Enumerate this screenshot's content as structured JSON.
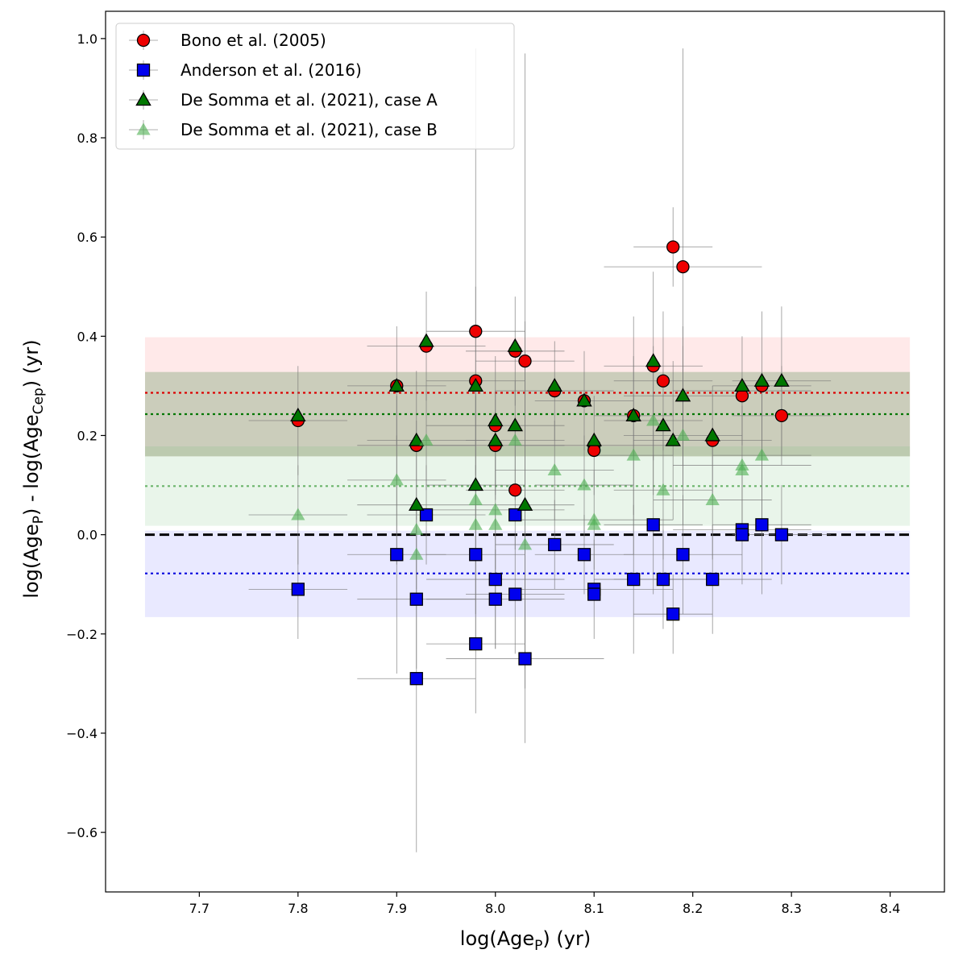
{
  "chart_data": {
    "type": "scatter",
    "title": "",
    "xlabel_main": "log(Age",
    "xlabel_sub": "P",
    "xlabel_tail": ") (yr)",
    "ylabel_parts": [
      "log(Age",
      "P",
      ") - log(Age",
      "Cep",
      ") (yr)"
    ],
    "xlim": [
      7.605,
      8.455
    ],
    "ylim": [
      -0.72,
      1.055
    ],
    "xticks": [
      7.7,
      7.8,
      7.9,
      8.0,
      8.1,
      8.2,
      8.3,
      8.4
    ],
    "xtick_labels": [
      "7.7",
      "7.8",
      "7.9",
      "8.0",
      "8.1",
      "8.2",
      "8.3",
      "8.4"
    ],
    "yticks": [
      -0.6,
      -0.4,
      -0.2,
      0.0,
      0.2,
      0.4,
      0.6,
      0.8,
      1.0
    ],
    "ytick_labels": [
      "−0.6",
      "−0.4",
      "−0.2",
      "0.0",
      "0.2",
      "0.4",
      "0.6",
      "0.8",
      "1.0"
    ],
    "legend_position": "top-left",
    "bands": [
      {
        "name": "bono-band",
        "y0": 0.158,
        "y1": 0.398,
        "x0": 7.645,
        "x1": 8.42,
        "color": "#ff9999",
        "opacity": 0.22
      },
      {
        "name": "somma-a-band",
        "y0": 0.158,
        "y1": 0.328,
        "x0": 7.645,
        "x1": 8.42,
        "color": "#2e7d32",
        "opacity": 0.25
      },
      {
        "name": "somma-b-band",
        "y0": 0.018,
        "y1": 0.178,
        "x0": 7.645,
        "x1": 8.42,
        "color": "#66bb6a",
        "opacity": 0.14
      },
      {
        "name": "anderson-band",
        "y0": -0.166,
        "y1": 0.008,
        "x0": 7.645,
        "x1": 8.42,
        "color": "#9999ff",
        "opacity": 0.22
      }
    ],
    "mean_lines": [
      {
        "name": "bono-mean",
        "y": 0.286,
        "color": "#dd0000",
        "dash": "3,4",
        "opacity": 1
      },
      {
        "name": "somma-a-mean",
        "y": 0.243,
        "color": "#007700",
        "dash": "3,4",
        "opacity": 1
      },
      {
        "name": "somma-b-mean",
        "y": 0.098,
        "color": "#339933",
        "dash": "3,4",
        "opacity": 0.7
      },
      {
        "name": "anderson-mean",
        "y": -0.078,
        "color": "#0000dd",
        "dash": "3,4",
        "opacity": 1
      },
      {
        "name": "zero-line",
        "y": 0.0,
        "color": "#000000",
        "dash": "12,6",
        "opacity": 1,
        "width": 3
      }
    ],
    "series": [
      {
        "name": "Bono et al. (2005)",
        "marker": "circle",
        "color": "#ee0000",
        "edge": "#000000",
        "opacity": 1,
        "points": [
          [
            7.8,
            0.23
          ],
          [
            7.9,
            0.3
          ],
          [
            7.92,
            0.18
          ],
          [
            7.93,
            0.38
          ],
          [
            7.98,
            0.41
          ],
          [
            7.98,
            0.31
          ],
          [
            8.0,
            0.22
          ],
          [
            8.0,
            0.18
          ],
          [
            8.02,
            0.37
          ],
          [
            8.02,
            0.09
          ],
          [
            8.03,
            0.35
          ],
          [
            8.06,
            0.29
          ],
          [
            8.09,
            0.27
          ],
          [
            8.1,
            0.18
          ],
          [
            8.1,
            0.17
          ],
          [
            8.14,
            0.24
          ],
          [
            8.16,
            0.34
          ],
          [
            8.17,
            0.31
          ],
          [
            8.18,
            0.58
          ],
          [
            8.19,
            0.54
          ],
          [
            8.22,
            0.19
          ],
          [
            8.25,
            0.28
          ],
          [
            8.27,
            0.3
          ],
          [
            8.29,
            0.24
          ]
        ]
      },
      {
        "name": "Anderson et al. (2016)",
        "marker": "square",
        "color": "#0000ee",
        "edge": "#000000",
        "opacity": 1,
        "points": [
          [
            7.8,
            -0.11
          ],
          [
            7.9,
            -0.04
          ],
          [
            7.92,
            -0.13
          ],
          [
            7.92,
            -0.29
          ],
          [
            7.93,
            0.04
          ],
          [
            7.98,
            -0.04
          ],
          [
            7.98,
            -0.22
          ],
          [
            8.0,
            -0.09
          ],
          [
            8.0,
            -0.13
          ],
          [
            8.02,
            0.04
          ],
          [
            8.02,
            -0.12
          ],
          [
            8.03,
            -0.25
          ],
          [
            8.06,
            -0.02
          ],
          [
            8.09,
            -0.04
          ],
          [
            8.1,
            -0.11
          ],
          [
            8.1,
            -0.12
          ],
          [
            8.14,
            -0.09
          ],
          [
            8.16,
            0.02
          ],
          [
            8.17,
            -0.09
          ],
          [
            8.18,
            -0.16
          ],
          [
            8.19,
            -0.04
          ],
          [
            8.22,
            -0.09
          ],
          [
            8.25,
            0.01
          ],
          [
            8.25,
            0.0
          ],
          [
            8.27,
            0.02
          ],
          [
            8.29,
            0.0
          ]
        ]
      },
      {
        "name": "De Somma et al. (2021), case A",
        "marker": "triangle",
        "color": "#007700",
        "edge": "#000000",
        "opacity": 1,
        "points": [
          [
            7.8,
            0.24
          ],
          [
            7.9,
            0.3
          ],
          [
            7.92,
            0.19
          ],
          [
            7.92,
            0.06
          ],
          [
            7.93,
            0.39
          ],
          [
            7.98,
            0.3
          ],
          [
            7.98,
            0.1
          ],
          [
            8.0,
            0.23
          ],
          [
            8.0,
            0.19
          ],
          [
            8.02,
            0.38
          ],
          [
            8.02,
            0.22
          ],
          [
            8.03,
            0.06
          ],
          [
            8.06,
            0.3
          ],
          [
            8.09,
            0.27
          ],
          [
            8.1,
            0.19
          ],
          [
            8.14,
            0.24
          ],
          [
            8.16,
            0.35
          ],
          [
            8.17,
            0.22
          ],
          [
            8.18,
            0.19
          ],
          [
            8.19,
            0.28
          ],
          [
            8.22,
            0.2
          ],
          [
            8.25,
            0.3
          ],
          [
            8.27,
            0.31
          ],
          [
            8.29,
            0.31
          ]
        ]
      },
      {
        "name": "De Somma et al. (2021), case B",
        "marker": "triangle",
        "color": "#4caf50",
        "edge": "none",
        "opacity": 0.6,
        "points": [
          [
            7.8,
            0.04
          ],
          [
            7.9,
            0.11
          ],
          [
            7.92,
            0.01
          ],
          [
            7.92,
            -0.04
          ],
          [
            7.93,
            0.19
          ],
          [
            7.98,
            0.07
          ],
          [
            7.98,
            0.02
          ],
          [
            8.0,
            0.05
          ],
          [
            8.0,
            0.02
          ],
          [
            8.02,
            0.19
          ],
          [
            8.03,
            -0.02
          ],
          [
            8.06,
            0.13
          ],
          [
            8.09,
            0.1
          ],
          [
            8.1,
            0.03
          ],
          [
            8.1,
            0.02
          ],
          [
            8.14,
            0.16
          ],
          [
            8.16,
            0.23
          ],
          [
            8.17,
            0.09
          ],
          [
            8.19,
            0.2
          ],
          [
            8.22,
            0.07
          ],
          [
            8.25,
            0.14
          ],
          [
            8.25,
            0.13
          ],
          [
            8.27,
            0.16
          ]
        ]
      }
    ],
    "error_bars": [
      {
        "x": 7.8,
        "y": 0.23,
        "ex": 0.05,
        "ey": 0.11
      },
      {
        "x": 7.8,
        "y": 0.04,
        "ex": 0.05,
        "ey": 0.1
      },
      {
        "x": 7.8,
        "y": -0.11,
        "ex": 0.05,
        "ey": 0.1
      },
      {
        "x": 7.9,
        "y": 0.3,
        "ex": 0.05,
        "ey": 0.12
      },
      {
        "x": 7.9,
        "y": 0.11,
        "ex": 0.05,
        "ey": 0.17
      },
      {
        "x": 7.9,
        "y": -0.04,
        "ex": 0.05,
        "ey": 0.24
      },
      {
        "x": 7.92,
        "y": 0.18,
        "ex": 0.06,
        "ey": 0.15
      },
      {
        "x": 7.92,
        "y": 0.06,
        "ex": 0.06,
        "ey": 0.17
      },
      {
        "x": 7.92,
        "y": -0.13,
        "ex": 0.06,
        "ey": 0.14
      },
      {
        "x": 7.92,
        "y": -0.29,
        "ex": 0.06,
        "ey": 0.35
      },
      {
        "x": 7.93,
        "y": 0.38,
        "ex": 0.06,
        "ey": 0.11
      },
      {
        "x": 7.93,
        "y": 0.19,
        "ex": 0.06,
        "ey": 0.1
      },
      {
        "x": 7.93,
        "y": 0.04,
        "ex": 0.06,
        "ey": 0.1
      },
      {
        "x": 7.98,
        "y": 0.41,
        "ex": 0.05,
        "ey": 0.57
      },
      {
        "x": 7.98,
        "y": 0.31,
        "ex": 0.05,
        "ey": 0.19
      },
      {
        "x": 7.98,
        "y": 0.1,
        "ex": 0.05,
        "ey": 0.18
      },
      {
        "x": 7.98,
        "y": -0.04,
        "ex": 0.05,
        "ey": 0.18
      },
      {
        "x": 7.98,
        "y": -0.22,
        "ex": 0.05,
        "ey": 0.14
      },
      {
        "x": 8.0,
        "y": 0.22,
        "ex": 0.07,
        "ey": 0.14
      },
      {
        "x": 8.0,
        "y": 0.18,
        "ex": 0.07,
        "ey": 0.11
      },
      {
        "x": 8.0,
        "y": 0.05,
        "ex": 0.07,
        "ey": 0.12
      },
      {
        "x": 8.0,
        "y": -0.09,
        "ex": 0.07,
        "ey": 0.14
      },
      {
        "x": 8.0,
        "y": -0.13,
        "ex": 0.07,
        "ey": 0.1
      },
      {
        "x": 8.02,
        "y": 0.37,
        "ex": 0.05,
        "ey": 0.11
      },
      {
        "x": 8.02,
        "y": 0.19,
        "ex": 0.05,
        "ey": 0.12
      },
      {
        "x": 8.02,
        "y": 0.09,
        "ex": 0.05,
        "ey": 0.12
      },
      {
        "x": 8.02,
        "y": -0.12,
        "ex": 0.05,
        "ey": 0.12
      },
      {
        "x": 8.03,
        "y": 0.35,
        "ex": 0.05,
        "ey": 0.62
      },
      {
        "x": 8.03,
        "y": 0.06,
        "ex": 0.05,
        "ey": 0.37
      },
      {
        "x": 8.03,
        "y": -0.25,
        "ex": 0.08,
        "ey": 0.17
      },
      {
        "x": 8.06,
        "y": 0.29,
        "ex": 0.06,
        "ey": 0.1
      },
      {
        "x": 8.06,
        "y": 0.13,
        "ex": 0.06,
        "ey": 0.1
      },
      {
        "x": 8.06,
        "y": -0.02,
        "ex": 0.06,
        "ey": 0.09
      },
      {
        "x": 8.09,
        "y": 0.27,
        "ex": 0.05,
        "ey": 0.1
      },
      {
        "x": 8.09,
        "y": 0.1,
        "ex": 0.05,
        "ey": 0.1
      },
      {
        "x": 8.09,
        "y": -0.04,
        "ex": 0.05,
        "ey": 0.08
      },
      {
        "x": 8.1,
        "y": 0.18,
        "ex": 0.08,
        "ey": 0.1
      },
      {
        "x": 8.1,
        "y": 0.03,
        "ex": 0.08,
        "ey": 0.1
      },
      {
        "x": 8.1,
        "y": -0.11,
        "ex": 0.08,
        "ey": 0.1
      },
      {
        "x": 8.14,
        "y": 0.24,
        "ex": 0.04,
        "ey": 0.2
      },
      {
        "x": 8.14,
        "y": 0.16,
        "ex": 0.04,
        "ey": 0.2
      },
      {
        "x": 8.14,
        "y": -0.09,
        "ex": 0.04,
        "ey": 0.15
      },
      {
        "x": 8.16,
        "y": 0.34,
        "ex": 0.05,
        "ey": 0.19
      },
      {
        "x": 8.16,
        "y": 0.23,
        "ex": 0.05,
        "ey": 0.15
      },
      {
        "x": 8.16,
        "y": 0.02,
        "ex": 0.05,
        "ey": 0.14
      },
      {
        "x": 8.17,
        "y": 0.31,
        "ex": 0.05,
        "ey": 0.14
      },
      {
        "x": 8.17,
        "y": 0.09,
        "ex": 0.05,
        "ey": 0.14
      },
      {
        "x": 8.17,
        "y": -0.09,
        "ex": 0.05,
        "ey": 0.1
      },
      {
        "x": 8.18,
        "y": 0.58,
        "ex": 0.04,
        "ey": 0.08
      },
      {
        "x": 8.18,
        "y": 0.19,
        "ex": 0.04,
        "ey": 0.16
      },
      {
        "x": 8.18,
        "y": -0.16,
        "ex": 0.04,
        "ey": 0.08
      },
      {
        "x": 8.19,
        "y": 0.54,
        "ex": 0.08,
        "ey": 0.44
      },
      {
        "x": 8.19,
        "y": 0.28,
        "ex": 0.06,
        "ey": 0.14
      },
      {
        "x": 8.19,
        "y": 0.2,
        "ex": 0.06,
        "ey": 0.18
      },
      {
        "x": 8.19,
        "y": -0.04,
        "ex": 0.06,
        "ey": 0.12
      },
      {
        "x": 8.22,
        "y": 0.19,
        "ex": 0.06,
        "ey": 0.11
      },
      {
        "x": 8.22,
        "y": 0.07,
        "ex": 0.06,
        "ey": 0.12
      },
      {
        "x": 8.22,
        "y": -0.09,
        "ex": 0.06,
        "ey": 0.11
      },
      {
        "x": 8.25,
        "y": 0.29,
        "ex": 0.07,
        "ey": 0.11
      },
      {
        "x": 8.25,
        "y": 0.14,
        "ex": 0.07,
        "ey": 0.12
      },
      {
        "x": 8.25,
        "y": 0.01,
        "ex": 0.07,
        "ey": 0.11
      },
      {
        "x": 8.27,
        "y": 0.3,
        "ex": 0.05,
        "ey": 0.15
      },
      {
        "x": 8.27,
        "y": 0.16,
        "ex": 0.05,
        "ey": 0.14
      },
      {
        "x": 8.27,
        "y": 0.02,
        "ex": 0.05,
        "ey": 0.14
      },
      {
        "x": 8.29,
        "y": 0.31,
        "ex": 0.05,
        "ey": 0.15
      },
      {
        "x": 8.29,
        "y": 0.24,
        "ex": 0.05,
        "ey": 0.1
      },
      {
        "x": 8.29,
        "y": 0.0,
        "ex": 0.05,
        "ey": 0.1
      }
    ]
  }
}
